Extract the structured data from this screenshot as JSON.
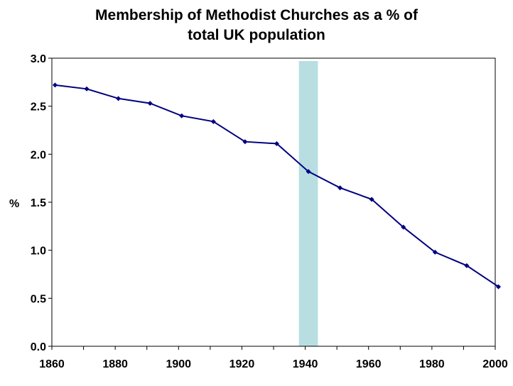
{
  "chart_data": {
    "type": "line",
    "title_line1": "Membership of Methodist Churches as a % of",
    "title_line2": "total UK population",
    "xlabel": "",
    "ylabel": "%",
    "xlim": [
      1860,
      2000
    ],
    "ylim": [
      0.0,
      3.0
    ],
    "x_ticks": [
      "1860",
      "1880",
      "1900",
      "1920",
      "1940",
      "1960",
      "1980",
      "2000"
    ],
    "y_ticks": [
      "0.0",
      "0.5",
      "1.0",
      "1.5",
      "2.0",
      "2.5",
      "3.0"
    ],
    "grid": false,
    "highlight_band": {
      "x_start": 1938,
      "x_end": 1944,
      "color": "#b8dee2"
    },
    "series": [
      {
        "color": "#000080",
        "x": [
          1861,
          1871,
          1881,
          1891,
          1901,
          1911,
          1921,
          1931,
          1941,
          1951,
          1961,
          1971,
          1981,
          1991,
          2001
        ],
        "values": [
          2.72,
          2.68,
          2.58,
          2.53,
          2.4,
          2.34,
          2.13,
          2.11,
          1.82,
          1.65,
          1.53,
          1.24,
          0.98,
          0.84,
          0.62
        ]
      }
    ]
  }
}
